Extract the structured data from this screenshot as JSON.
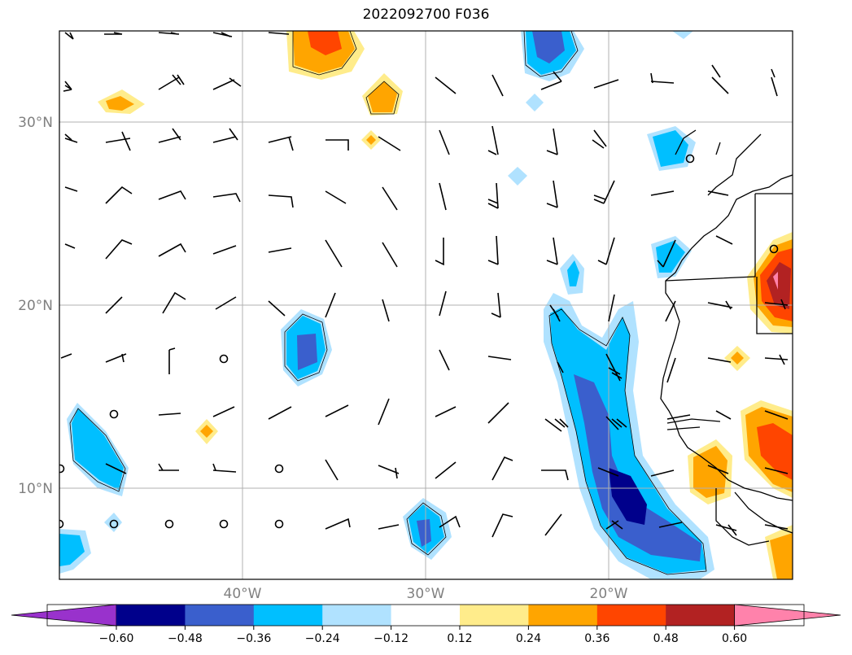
{
  "title": "2022092700 F036",
  "map": {
    "lat_labels": [
      {
        "value": 30,
        "text": "30°N"
      },
      {
        "value": 20,
        "text": "20°N"
      },
      {
        "value": 10,
        "text": "10°N"
      }
    ],
    "lon_labels": [
      {
        "value": -40,
        "text": "40°W"
      },
      {
        "value": -30,
        "text": "30°W"
      },
      {
        "value": -20,
        "text": "20°W"
      }
    ],
    "extent": {
      "lon_min": -50,
      "lon_max": -10,
      "lat_min": 5,
      "lat_max": 35
    }
  },
  "colorbar": {
    "tick_labels": [
      "−0.60",
      "−0.48",
      "−0.36",
      "−0.24",
      "−0.12",
      "0.12",
      "0.24",
      "0.36",
      "0.48",
      "0.60"
    ],
    "colors": [
      "#9932cc",
      "#00008b",
      "#3a5fcd",
      "#00bfff",
      "#b0e2ff",
      "#ffffff",
      "#ffec8b",
      "#ffa500",
      "#ff4500",
      "#b22222",
      "#ff82ab"
    ],
    "extend": "both"
  }
}
